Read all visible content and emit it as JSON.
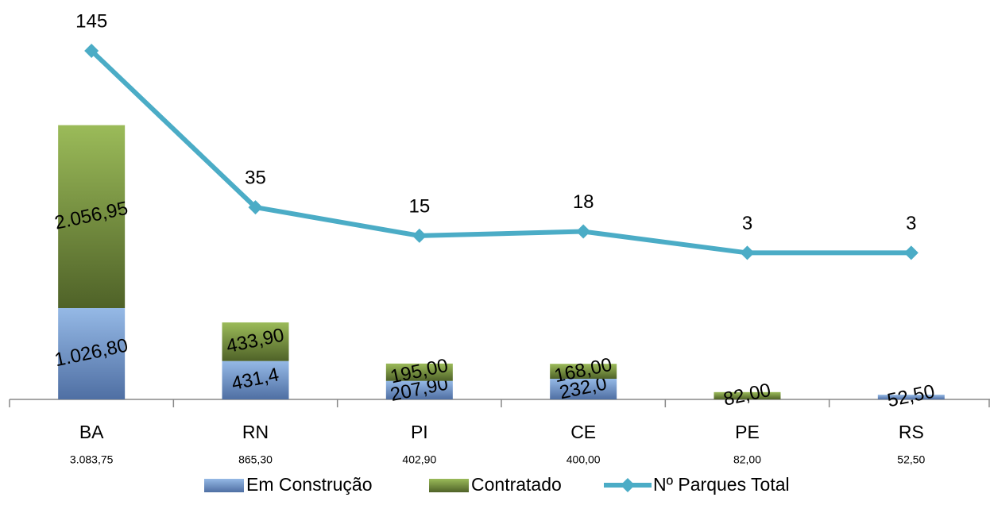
{
  "chart_data": {
    "type": "bar-line",
    "categories": [
      "BA",
      "RN",
      "PI",
      "CE",
      "PE",
      "RS"
    ],
    "totals": [
      {
        "value": 3083.75,
        "label": "3.083,75"
      },
      {
        "value": 865.3,
        "label": "865,30"
      },
      {
        "value": 402.9,
        "label": "402,90"
      },
      {
        "value": 400,
        "label": "400,00"
      },
      {
        "value": 82,
        "label": "82,00"
      },
      {
        "value": 52.5,
        "label": "52,50"
      }
    ],
    "series": [
      {
        "name": "Em Construção",
        "color": "#6f95cc",
        "values": [
          1026.8,
          431.4,
          207.9,
          232.0,
          null,
          52.5
        ],
        "value_labels": [
          "1.026,80",
          "431,4",
          "207,90",
          "232,0",
          null,
          "52,50"
        ]
      },
      {
        "name": "Contratado",
        "color": "#7fa03c",
        "values": [
          2056.95,
          433.9,
          195,
          168,
          82,
          null
        ],
        "value_labels": [
          "2.056,95",
          "433,90",
          "195,00",
          "168,00",
          "82,00",
          null
        ]
      },
      {
        "name": "Nº Parques Total",
        "color": "#4bacc6",
        "type": "line",
        "axis": "y2",
        "values": [
          145,
          35,
          15,
          18,
          3,
          3
        ]
      }
    ],
    "ylim": [
      0,
      4000
    ],
    "y2lim": [
      -100,
      150
    ],
    "stacked": true
  }
}
